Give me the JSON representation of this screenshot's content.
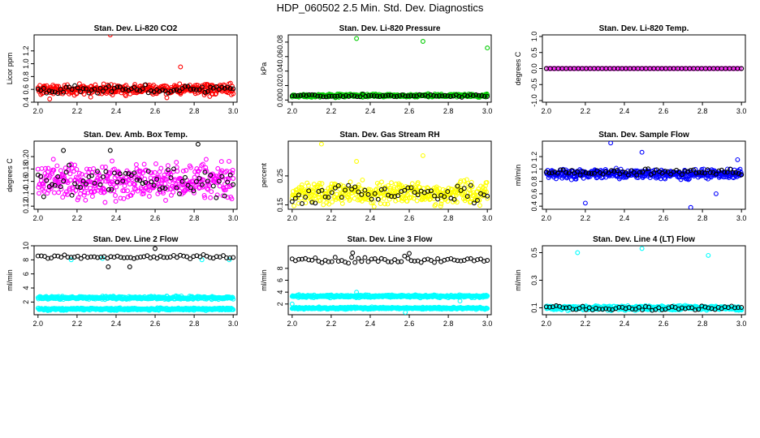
{
  "figure": {
    "title": "HDP_060502  2.5 Min. Std. Dev. Diagnostics"
  },
  "chart_data": [
    {
      "type": "scatter",
      "title": "Stan. Dev. Li-820 CO2",
      "ylabel": "Licor ppm",
      "xlabel": "",
      "xlim": [
        1.98,
        3.02
      ],
      "ylim": [
        0.4,
        1.45
      ],
      "xticks": [
        "2.0",
        "2.2",
        "2.4",
        "2.6",
        "2.8",
        "3.0"
      ],
      "yticks": [
        "0.4",
        "0.6",
        "0.8",
        "1.0",
        "1.2"
      ],
      "series": [
        {
          "color": "#ff0000",
          "points": [
            [
              2.37,
              1.45
            ],
            [
              2.73,
              0.95
            ],
            [
              2.06,
              0.45
            ],
            [
              2.27,
              0.48
            ],
            [
              2.45,
              0.5
            ],
            [
              2.66,
              0.47
            ],
            [
              2.88,
              0.49
            ]
          ],
          "band": {
            "x": [
              2.0,
              3.0
            ],
            "center": 0.6,
            "spread": 0.07,
            "n": 420
          }
        },
        {
          "color": "#000000",
          "points": [],
          "band": {
            "x": [
              2.0,
              3.0
            ],
            "center": 0.6,
            "spread": 0.06,
            "n": 70
          }
        }
      ]
    },
    {
      "type": "scatter",
      "title": "Stan. Dev. Li-820 Pressure",
      "ylabel": "kPa",
      "xlabel": "",
      "xlim": [
        1.98,
        3.02
      ],
      "ylim": [
        -0.003,
        0.09
      ],
      "xticks": [
        "2.0",
        "2.2",
        "2.4",
        "2.6",
        "2.8",
        "3.0"
      ],
      "yticks": [
        "0.00",
        "0.02",
        "0.04",
        "0.06",
        "0.08"
      ],
      "series": [
        {
          "color": "#00cc00",
          "points": [
            [
              2.33,
              0.085
            ],
            [
              2.67,
              0.081
            ],
            [
              3.0,
              0.072
            ]
          ],
          "band": {
            "x": [
              2.0,
              3.0
            ],
            "center": 0.006,
            "spread": 0.002,
            "n": 380
          }
        },
        {
          "color": "#000000",
          "points": [],
          "band": {
            "x": [
              2.0,
              3.0
            ],
            "center": 0.006,
            "spread": 0.0015,
            "n": 70
          }
        }
      ]
    },
    {
      "type": "scatter",
      "title": "Stan. Dev. Li-820 Temp.",
      "ylabel": "degrees C",
      "xlabel": "",
      "xlim": [
        1.98,
        3.02
      ],
      "ylim": [
        -1.05,
        1.05
      ],
      "xticks": [
        "2.0",
        "2.2",
        "2.4",
        "2.6",
        "2.8",
        "3.0"
      ],
      "yticks": [
        "-1.0",
        "-0.5",
        "0.0",
        "0.5",
        "1.0"
      ],
      "series": [
        {
          "color": "#ff00ff",
          "points": [],
          "band": {
            "x": [
              2.0,
              3.0
            ],
            "center": 0.0,
            "spread": 0.0,
            "n": 120
          }
        },
        {
          "color": "#000000",
          "points": [],
          "band": {
            "x": [
              2.0,
              3.0
            ],
            "center": 0.0,
            "spread": 0.0,
            "n": 50
          }
        }
      ]
    },
    {
      "type": "scatter",
      "title": "Stan. Dev. Amb. Box Temp.",
      "ylabel": "degrees C",
      "xlabel": "",
      "xlim": [
        1.98,
        3.02
      ],
      "ylim": [
        0.115,
        0.225
      ],
      "xticks": [
        "2.0",
        "2.2",
        "2.4",
        "2.6",
        "2.8",
        "3.0"
      ],
      "yticks": [
        "0.12",
        "0.14",
        "0.16",
        "0.18",
        "0.20"
      ],
      "series": [
        {
          "color": "#ff00ff",
          "points": [],
          "band": {
            "x": [
              2.0,
              3.0
            ],
            "center": 0.16,
            "spread": 0.025,
            "n": 420
          }
        },
        {
          "color": "#000000",
          "points": [
            [
              2.13,
              0.21
            ],
            [
              2.82,
              0.22
            ],
            [
              2.37,
              0.21
            ]
          ],
          "band": {
            "x": [
              2.0,
              3.0
            ],
            "center": 0.16,
            "spread": 0.022,
            "n": 70
          }
        }
      ]
    },
    {
      "type": "scatter",
      "title": "Stan. Dev. Gas Stream RH",
      "ylabel": "percent",
      "xlabel": "",
      "xlim": [
        1.98,
        3.02
      ],
      "ylim": [
        0.135,
        0.37
      ],
      "xticks": [
        "2.0",
        "2.2",
        "2.4",
        "2.6",
        "2.8",
        "3.0"
      ],
      "yticks": [
        "0.15",
        "0.25"
      ],
      "series": [
        {
          "color": "#ffff00",
          "points": [
            [
              2.15,
              0.36
            ],
            [
              2.67,
              0.32
            ],
            [
              2.33,
              0.3
            ]
          ],
          "band": {
            "x": [
              2.0,
              3.0
            ],
            "center": 0.19,
            "spread": 0.035,
            "n": 420
          }
        },
        {
          "color": "#000000",
          "points": [],
          "band": {
            "x": [
              2.0,
              3.0
            ],
            "center": 0.19,
            "spread": 0.035,
            "n": 60
          }
        }
      ]
    },
    {
      "type": "scatter",
      "title": "Stan. Dev. Sample Flow",
      "ylabel": "ml/min",
      "xlabel": "",
      "xlim": [
        1.98,
        3.02
      ],
      "ylim": [
        0.35,
        1.45
      ],
      "xticks": [
        "2.0",
        "2.2",
        "2.4",
        "2.6",
        "2.8",
        "3.0"
      ],
      "yticks": [
        "0.4",
        "0.6",
        "0.8",
        "1.0",
        "1.2"
      ],
      "series": [
        {
          "color": "#0000ff",
          "points": [
            [
              2.33,
              1.42
            ],
            [
              2.49,
              1.27
            ],
            [
              2.2,
              0.45
            ],
            [
              2.74,
              0.38
            ],
            [
              2.87,
              0.6
            ],
            [
              2.98,
              1.15
            ]
          ],
          "band": {
            "x": [
              2.0,
              3.0
            ],
            "center": 0.92,
            "spread": 0.07,
            "n": 420
          }
        },
        {
          "color": "#000000",
          "points": [],
          "band": {
            "x": [
              2.0,
              3.0
            ],
            "center": 0.95,
            "spread": 0.05,
            "n": 70
          }
        }
      ]
    },
    {
      "type": "scatter",
      "title": "Stan. Dev. Line 2 Flow",
      "ylabel": "ml/min",
      "xlabel": "",
      "xlim": [
        1.98,
        3.02
      ],
      "ylim": [
        0.2,
        10.0
      ],
      "xticks": [
        "2.0",
        "2.2",
        "2.4",
        "2.6",
        "2.8",
        "3.0"
      ],
      "yticks": [
        "2",
        "4",
        "6",
        "8",
        "10"
      ],
      "series": [
        {
          "color": "#00ffff",
          "points": [
            [
              2.17,
              8.0
            ],
            [
              2.33,
              8.2
            ],
            [
              2.84,
              8.0
            ],
            [
              2.98,
              8.0
            ]
          ],
          "band": {
            "x": [
              2.0,
              3.0
            ],
            "center": 2.6,
            "spread": 0.2,
            "n": 400
          }
        },
        {
          "color": "#00ffff",
          "points": [],
          "band": {
            "x": [
              2.0,
              3.0
            ],
            "center": 1.0,
            "spread": 0.15,
            "n": 400
          }
        },
        {
          "color": "#000000",
          "points": [
            [
              2.6,
              9.6
            ],
            [
              2.36,
              7.0
            ],
            [
              2.47,
              7.0
            ]
          ],
          "band": {
            "x": [
              2.0,
              3.0
            ],
            "center": 8.4,
            "spread": 0.25,
            "n": 60
          }
        }
      ]
    },
    {
      "type": "scatter",
      "title": "Stan. Dev. Line 3 Flow",
      "ylabel": "ml/min",
      "xlabel": "",
      "xlim": [
        1.98,
        3.02
      ],
      "ylim": [
        0.2,
        11.8
      ],
      "xticks": [
        "2.0",
        "2.2",
        "2.4",
        "2.6",
        "2.8",
        "3.0"
      ],
      "yticks": [
        "2",
        "4",
        "6",
        "8"
      ],
      "series": [
        {
          "color": "#00ffff",
          "points": [
            [
              2.33,
              4.0
            ],
            [
              2.86,
              2.5
            ],
            [
              2.0,
              2.0
            ],
            [
              2.58,
              0.6
            ]
          ],
          "band": {
            "x": [
              2.0,
              3.0
            ],
            "center": 3.3,
            "spread": 0.2,
            "n": 400
          }
        },
        {
          "color": "#00ffff",
          "points": [],
          "band": {
            "x": [
              2.0,
              3.0
            ],
            "center": 1.3,
            "spread": 0.15,
            "n": 400
          }
        },
        {
          "color": "#000000",
          "points": [
            [
              2.31,
              10.6
            ],
            [
              2.6,
              10.5
            ]
          ],
          "band": {
            "x": [
              2.0,
              3.0
            ],
            "center": 9.4,
            "spread": 0.5,
            "n": 60
          }
        }
      ]
    },
    {
      "type": "scatter",
      "title": "Stan. Dev. Line 4 (LT) Flow",
      "ylabel": "ml/min",
      "xlabel": "",
      "xlim": [
        1.98,
        3.02
      ],
      "ylim": [
        0.05,
        0.55
      ],
      "xticks": [
        "2.0",
        "2.2",
        "2.4",
        "2.6",
        "2.8",
        "3.0"
      ],
      "yticks": [
        "0.1",
        "0.3",
        "0.5"
      ],
      "series": [
        {
          "color": "#00ffff",
          "points": [
            [
              2.16,
              0.5
            ],
            [
              2.49,
              0.53
            ],
            [
              2.83,
              0.48
            ]
          ],
          "band": {
            "x": [
              2.0,
              3.0
            ],
            "center": 0.1,
            "spread": 0.015,
            "n": 420
          }
        },
        {
          "color": "#000000",
          "points": [],
          "band": {
            "x": [
              2.0,
              3.0
            ],
            "center": 0.1,
            "spread": 0.015,
            "n": 60
          }
        }
      ]
    }
  ]
}
